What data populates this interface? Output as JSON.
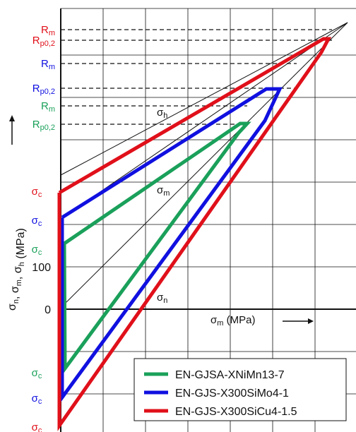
{
  "chart_data": {
    "type": "line",
    "title": "",
    "xlabel": "σm (MPa)",
    "ylabel": "σn, σm, σh (MPa)",
    "grid": true,
    "y_ticks": [
      {
        "label": "0",
        "value": 0
      },
      {
        "label": "100",
        "value": 100
      }
    ],
    "level_markers": [
      {
        "label": "Rm",
        "color": "#e0101a",
        "series": "EN-GJS-X300SiCu4-1.5"
      },
      {
        "label": "Rp0,2",
        "color": "#e0101a",
        "series": "EN-GJS-X300SiCu4-1.5"
      },
      {
        "label": "Rm",
        "color": "#1010e0",
        "series": "EN-GJS-X300SiMo4-1"
      },
      {
        "label": "Rp0,2",
        "color": "#1010e0",
        "series": "EN-GJS-X300SiMo4-1"
      },
      {
        "label": "Rm",
        "color": "#1aa05a",
        "series": "EN-GJSA-XNiMn13-7"
      },
      {
        "label": "Rp0,2",
        "color": "#1aa05a",
        "series": "EN-GJSA-XNiMn13-7"
      }
    ],
    "sigma_c_labels": [
      {
        "label": "σc",
        "color": "#e0101a"
      },
      {
        "label": "σc",
        "color": "#1010e0"
      },
      {
        "label": "σc",
        "color": "#1aa05a"
      },
      {
        "label": "σc",
        "color": "#1aa05a"
      },
      {
        "label": "σc",
        "color": "#1010e0"
      },
      {
        "label": "σc",
        "color": "#e0101a"
      }
    ],
    "reference_lines": [
      {
        "label": "σh"
      },
      {
        "label": "σm"
      },
      {
        "label": "σn"
      }
    ],
    "series": [
      {
        "name": "EN-GJSA-XNiMn13-7",
        "color": "#1aa05a",
        "points": [
          [
            0,
            151
          ],
          [
            345,
            410
          ],
          [
            358,
            410
          ],
          [
            338,
            445
          ],
          [
            0,
            -135
          ],
          [
            0,
            151
          ]
        ]
      },
      {
        "name": "EN-GJS-X300SiMo4-1",
        "color": "#1010e0",
        "points": [
          [
            0,
            208
          ],
          [
            375,
            510
          ],
          [
            397,
            510
          ],
          [
            375,
            450
          ],
          [
            0,
            -206
          ],
          [
            0,
            208
          ]
        ]
      },
      {
        "name": "EN-GJS-X300SiCu4-1.5",
        "color": "#e0101a",
        "points": [
          [
            0,
            265
          ],
          [
            447,
            610
          ],
          [
            465,
            610
          ],
          [
            452,
            580
          ],
          [
            0,
            -276
          ],
          [
            0,
            265
          ]
        ]
      }
    ],
    "legend_position": "bottom-right"
  },
  "legend": {
    "items": [
      {
        "label": "EN-GJSA-XNiMn13-7",
        "color": "#1aa05a"
      },
      {
        "label": "EN-GJS-X300SiMo4-1",
        "color": "#1010e0"
      },
      {
        "label": "EN-GJS-X300SiCu4-1.5",
        "color": "#e0101a"
      }
    ]
  }
}
